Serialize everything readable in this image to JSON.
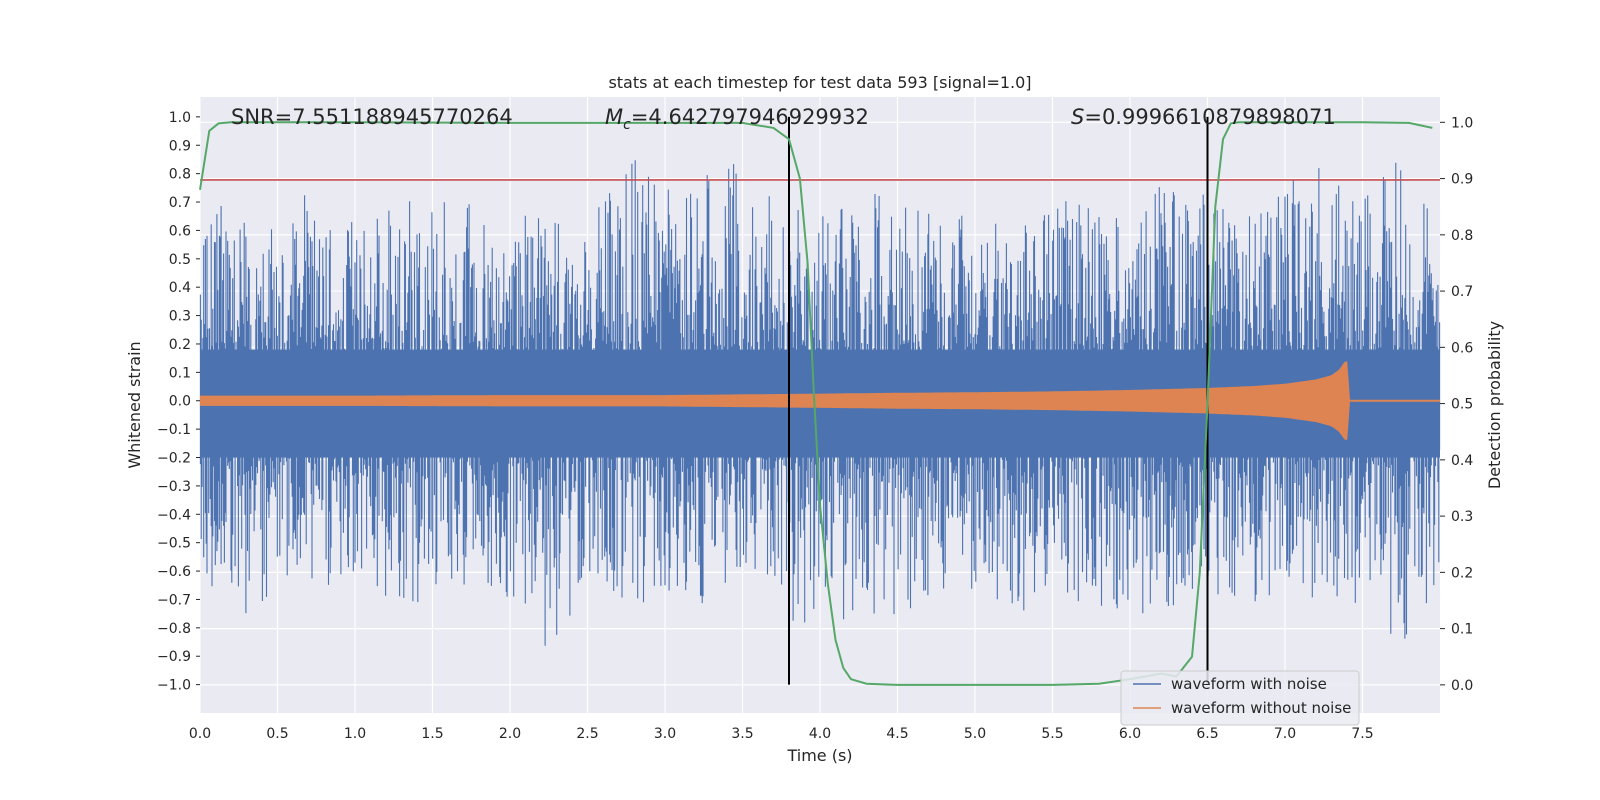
{
  "chart_data": {
    "type": "line",
    "title": "stats at each timestep for test data 593 [signal=1.0]",
    "xlabel": "Time (s)",
    "ylabel_left": "Whitened strain",
    "ylabel_right": "Detection probability",
    "xlim": [
      0.0,
      8.0
    ],
    "ylim_left": [
      -1.1,
      1.07
    ],
    "ylim_right": [
      -0.05,
      1.045
    ],
    "x_ticks": [
      "0.0",
      "0.5",
      "1.0",
      "1.5",
      "2.0",
      "2.5",
      "3.0",
      "3.5",
      "4.0",
      "4.5",
      "5.0",
      "5.5",
      "6.0",
      "6.5",
      "7.0",
      "7.5"
    ],
    "y_left_ticks": [
      "1.0",
      "0.9",
      "0.8",
      "0.7",
      "0.6",
      "0.5",
      "0.4",
      "0.3",
      "0.2",
      "0.1",
      "0.0",
      "−0.1",
      "−0.2",
      "−0.3",
      "−0.4",
      "−0.5",
      "−0.6",
      "−0.7",
      "−0.8",
      "−0.9",
      "−1.0"
    ],
    "y_right_ticks": [
      "1.0",
      "0.9",
      "0.8",
      "0.7",
      "0.6",
      "0.5",
      "0.4",
      "0.3",
      "0.2",
      "0.1",
      "0.0"
    ],
    "grid": true,
    "annotations": {
      "snr": "SNR=7.551188945770264",
      "mc_symbol": "M",
      "mc_sub": "c",
      "mc_value": "=4.642797946929932",
      "s_symbol": "S",
      "s_value": "=0.9996610879898071"
    },
    "threshold": {
      "y": 0.778,
      "color": "#c44e52"
    },
    "vertical_lines": [
      {
        "x": 3.8,
        "color": "#000000"
      },
      {
        "x": 6.5,
        "color": "#000000"
      }
    ],
    "legend_position": "lower-right",
    "series": [
      {
        "name": "waveform with noise",
        "color": "#4c72b0",
        "axis": "left",
        "envelope_x": [
          0.0,
          0.25,
          0.5,
          0.75,
          1.0,
          1.25,
          1.5,
          1.75,
          2.0,
          2.25,
          2.5,
          2.75,
          3.0,
          3.25,
          3.5,
          3.75,
          4.0,
          4.25,
          4.5,
          4.75,
          5.0,
          5.25,
          5.5,
          5.75,
          6.0,
          6.25,
          6.5,
          6.75,
          7.0,
          7.25,
          7.5,
          7.75,
          8.0
        ],
        "envelope_upper": [
          0.55,
          0.8,
          0.62,
          0.78,
          0.62,
          0.7,
          0.75,
          0.72,
          0.62,
          0.75,
          0.6,
          0.9,
          0.75,
          0.8,
          0.85,
          0.7,
          0.65,
          0.75,
          0.7,
          0.65,
          0.68,
          0.62,
          0.72,
          0.7,
          0.62,
          0.8,
          0.72,
          0.65,
          0.75,
          0.9,
          0.7,
          0.88,
          0.65
        ],
        "envelope_lower": [
          -0.6,
          -0.82,
          -0.65,
          -0.7,
          -0.6,
          -0.75,
          -0.78,
          -0.65,
          -0.7,
          -0.95,
          -0.6,
          -0.72,
          -0.7,
          -0.75,
          -0.6,
          -0.75,
          -0.85,
          -0.75,
          -0.8,
          -0.7,
          -0.7,
          -0.75,
          -0.72,
          -0.7,
          -0.82,
          -0.75,
          -0.68,
          -0.7,
          -0.75,
          -0.7,
          -0.72,
          -0.9,
          -0.65
        ]
      },
      {
        "name": "waveform without noise",
        "color": "#dd8452",
        "axis": "left",
        "x": [
          0.0,
          1.0,
          2.0,
          3.0,
          4.0,
          4.5,
          5.0,
          5.5,
          6.0,
          6.5,
          6.8,
          7.0,
          7.2,
          7.3,
          7.35,
          7.4,
          7.42,
          8.0
        ],
        "amplitude": [
          0.018,
          0.018,
          0.02,
          0.02,
          0.025,
          0.028,
          0.03,
          0.033,
          0.038,
          0.045,
          0.052,
          0.06,
          0.075,
          0.09,
          0.11,
          0.15,
          0.0,
          0.0
        ]
      },
      {
        "name": "detection probability",
        "color": "#55a868",
        "axis": "right",
        "x": [
          0.0,
          0.06,
          0.12,
          0.2,
          0.5,
          1.0,
          2.0,
          3.0,
          3.5,
          3.7,
          3.8,
          3.87,
          3.92,
          3.96,
          4.0,
          4.05,
          4.1,
          4.15,
          4.2,
          4.3,
          4.5,
          5.0,
          5.5,
          5.8,
          6.0,
          6.2,
          6.3,
          6.4,
          6.45,
          6.5,
          6.55,
          6.6,
          6.65,
          6.7,
          7.0,
          7.5,
          7.8,
          7.95
        ],
        "y": [
          0.88,
          0.985,
          0.998,
          1.0,
          1.0,
          1.0,
          0.999,
          0.999,
          0.999,
          0.99,
          0.97,
          0.9,
          0.75,
          0.52,
          0.32,
          0.18,
          0.08,
          0.03,
          0.01,
          0.002,
          0.0,
          0.0,
          0.0,
          0.002,
          0.01,
          0.02,
          0.015,
          0.05,
          0.2,
          0.5,
          0.85,
          0.97,
          0.998,
          1.0,
          1.0,
          1.0,
          0.999,
          0.99
        ]
      }
    ]
  }
}
